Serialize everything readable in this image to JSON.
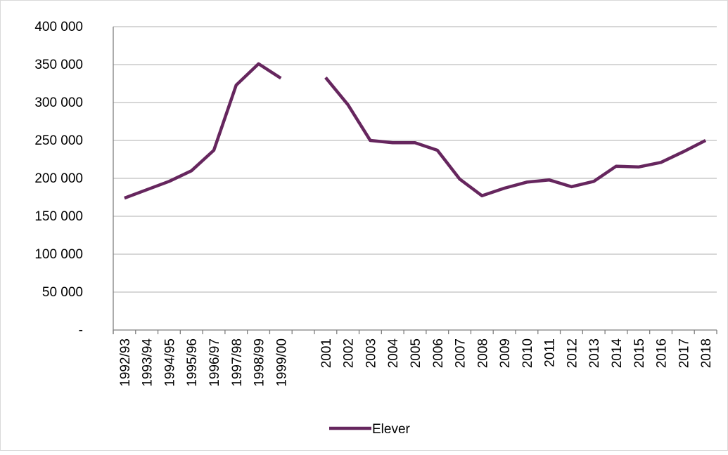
{
  "chart_data": {
    "type": "line",
    "categories": [
      "1992/93",
      "1993/94",
      "1994/95",
      "1995/96",
      "1996/97",
      "1997/98",
      "1998/99",
      "1999/00",
      "",
      "2001",
      "2002",
      "2003",
      "2004",
      "2005",
      "2006",
      "2007",
      "2008",
      "2009",
      "2010",
      "2011",
      "2012",
      "2013",
      "2014",
      "2015",
      "2016",
      "2017",
      "2018"
    ],
    "series": [
      {
        "name": "Elever",
        "color": "#66265e",
        "values": [
          174000,
          185000,
          196000,
          210000,
          237000,
          323000,
          351000,
          332000,
          null,
          333000,
          297000,
          250000,
          247000,
          247000,
          237000,
          199000,
          177000,
          187000,
          195000,
          198000,
          189000,
          196000,
          216000,
          215000,
          221000,
          235000,
          250000
        ]
      }
    ],
    "yticks": [
      {
        "value": 0,
        "label": "-"
      },
      {
        "value": 50000,
        "label": "50 000"
      },
      {
        "value": 100000,
        "label": "100 000"
      },
      {
        "value": 150000,
        "label": "150 000"
      },
      {
        "value": 200000,
        "label": "200 000"
      },
      {
        "value": 250000,
        "label": "250 000"
      },
      {
        "value": 300000,
        "label": "300 000"
      },
      {
        "value": 350000,
        "label": "350 000"
      },
      {
        "value": 400000,
        "label": "400 000"
      }
    ],
    "ylim": [
      0,
      400000
    ],
    "grid": true,
    "legend": "bottom-center",
    "gridColor": "#bfbfbf"
  }
}
